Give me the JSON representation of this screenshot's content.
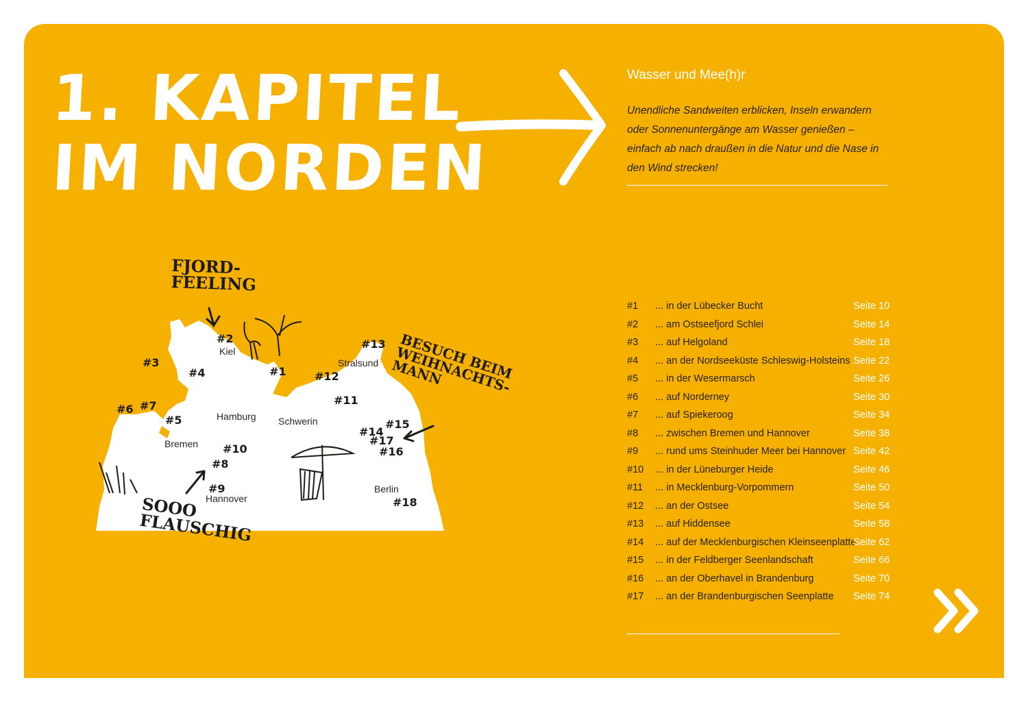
{
  "chapter": {
    "title_line1": "1. KAPITEL",
    "title_line2": "IM NORDEN",
    "subtitle": "Wasser und Mee(h)r",
    "intro": "Unendliche Sandweiten erblicken, Inseln erwandern oder Sonnenuntergänge am Wasser genießen – einfach ab nach draußen in die Natur und die Nase in den Wind strecken!"
  },
  "colors": {
    "background": "#f6b000",
    "accent": "#ffffff",
    "text": "#2b2218"
  },
  "map": {
    "annotations": {
      "fjord": "FJORD-\nFEELING",
      "besuch": "BESUCH BEIM\nWEIHNACHTS-\nMANN",
      "flauschig": "SOOO\nFLAUSCHIG"
    },
    "cities": [
      "Kiel",
      "Stralsund",
      "Hamburg",
      "Schwerin",
      "Bremen",
      "Hannover",
      "Berlin"
    ],
    "markers": [
      "#1",
      "#2",
      "#3",
      "#4",
      "#5",
      "#6",
      "#7",
      "#8",
      "#9",
      "#10",
      "#11",
      "#12",
      "#13",
      "#14",
      "#15",
      "#16",
      "#17",
      "#18"
    ]
  },
  "toc": [
    {
      "num": "#1",
      "label": "... in der Lübecker Bucht",
      "page": "Seite 10"
    },
    {
      "num": "#2",
      "label": "... am Ostseefjord Schlei",
      "page": "Seite 14"
    },
    {
      "num": "#3",
      "label": "... auf Helgoland",
      "page": "Seite 18"
    },
    {
      "num": "#4",
      "label": "... an der Nordseeküste Schleswig-Holsteins",
      "page": "Seite 22"
    },
    {
      "num": "#5",
      "label": "... in der Wesermarsch",
      "page": "Seite 26"
    },
    {
      "num": "#6",
      "label": "... auf Norderney",
      "page": "Seite 30"
    },
    {
      "num": "#7",
      "label": "... auf Spiekeroog",
      "page": "Seite 34"
    },
    {
      "num": "#8",
      "label": "... zwischen Bremen und Hannover",
      "page": "Seite 38"
    },
    {
      "num": "#9",
      "label": "... rund ums Steinhuder Meer bei Hannover",
      "page": "Seite 42"
    },
    {
      "num": "#10",
      "label": "... in der Lüneburger Heide",
      "page": "Seite 46"
    },
    {
      "num": "#11",
      "label": "... in Mecklenburg-Vorpommern",
      "page": "Seite 50"
    },
    {
      "num": "#12",
      "label": "... an der Ostsee",
      "page": "Seite 54"
    },
    {
      "num": "#13",
      "label": "... auf Hiddensee",
      "page": "Seite 58"
    },
    {
      "num": "#14",
      "label": "... auf der Mecklenburgischen Kleinseenplatte",
      "page": "Seite 62"
    },
    {
      "num": "#15",
      "label": "... in der Feldberger Seenlandschaft",
      "page": "Seite 66"
    },
    {
      "num": "#16",
      "label": "... an der Oberhavel in Brandenburg",
      "page": "Seite 70"
    },
    {
      "num": "#17",
      "label": "... an der Brandenburgischen Seenplatte",
      "page": "Seite 74"
    }
  ],
  "icons": {
    "arrow": "arrow-right-icon",
    "next": "double-chevron-right-icon"
  }
}
